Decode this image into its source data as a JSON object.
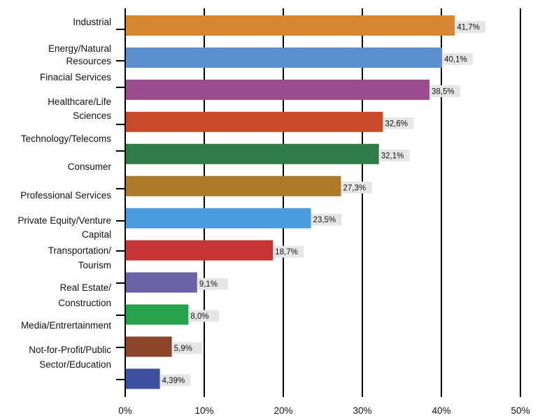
{
  "chart_data": {
    "type": "bar",
    "orientation": "horizontal",
    "title": "",
    "xlabel": "",
    "ylabel": "",
    "xlim": [
      0,
      50
    ],
    "x_ticks": [
      "0%",
      "10%",
      "20%",
      "30%",
      "40%",
      "50%"
    ],
    "grid": "vertical major gridlines",
    "legend": "none",
    "category_labels": [
      "Industrial",
      "Energy/Natural Resources",
      "Finacial Services",
      "Healthcare/Life Sciences",
      "Technology/Telecoms",
      "Consumer",
      "Professional Services",
      "Private Equity/Venture Capital",
      "Transportation/ Tourism",
      "Real Estate/ Construction",
      "Media/Entrertainment",
      "Not-for-Profit/Public Sector/Education"
    ],
    "bars": [
      {
        "value": 41.7,
        "label": "41,7%",
        "color": "#D68730"
      },
      {
        "value": 40.1,
        "label": "40,1%",
        "color": "#5B8FD0"
      },
      {
        "value": 38.5,
        "label": "38,5%",
        "color": "#9A4C8E"
      },
      {
        "value": 32.6,
        "label": "32,6%",
        "color": "#C84C2B"
      },
      {
        "value": 32.1,
        "label": "32,1%",
        "color": "#2E7B45"
      },
      {
        "value": 27.3,
        "label": "27,3%",
        "color": "#AD7A2A"
      },
      {
        "value": 23.5,
        "label": "23,5%",
        "color": "#4A9CDE"
      },
      {
        "value": 18.7,
        "label": "18,7%",
        "color": "#C73434"
      },
      {
        "value": 9.1,
        "label": "9,1%",
        "color": "#6B62A6"
      },
      {
        "value": 8.0,
        "label": "8,0%",
        "color": "#25A24A"
      },
      {
        "value": 5.9,
        "label": "5,9%",
        "color": "#8B4528"
      },
      {
        "value": 4.39,
        "label": "4,39%",
        "color": "#3D4F9E"
      }
    ]
  }
}
